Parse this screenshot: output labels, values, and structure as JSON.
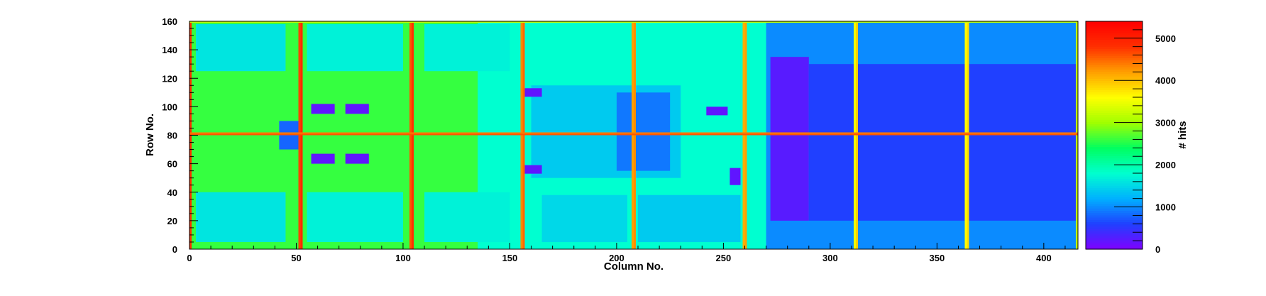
{
  "chart_data": {
    "type": "heatmap",
    "title": "",
    "xlabel": "Column No.",
    "ylabel": "Row No.",
    "zlabel": "# hits",
    "xlim": [
      0,
      416
    ],
    "ylim": [
      0,
      160
    ],
    "zlim": [
      0,
      5400
    ],
    "xticks": [
      "0",
      "50",
      "100",
      "150",
      "200",
      "250",
      "300",
      "350",
      "400"
    ],
    "yticks": [
      "0",
      "20",
      "40",
      "60",
      "80",
      "100",
      "120",
      "140",
      "160"
    ],
    "zticks": [
      "0",
      "1000",
      "2000",
      "3000",
      "4000",
      "5000"
    ],
    "colormap": [
      "#8000ff",
      "#2040ff",
      "#00b0ff",
      "#00ffd0",
      "#00ff60",
      "#a0ff00",
      "#ffff00",
      "#ffa000",
      "#ff3000",
      "#ff0000"
    ],
    "background_hits": 2500,
    "regions": [
      {
        "x": [
          0,
          416
        ],
        "y": [
          0,
          160
        ],
        "hits": 1900
      },
      {
        "x": [
          0,
          135
        ],
        "y": [
          0,
          160
        ],
        "hits": 2600
      },
      {
        "x": [
          135,
          270
        ],
        "y": [
          0,
          160
        ],
        "hits": 1800
      },
      {
        "x": [
          270,
          416
        ],
        "y": [
          0,
          160
        ],
        "hits": 1000
      },
      {
        "x": [
          160,
          230
        ],
        "y": [
          50,
          115
        ],
        "hits": 1400
      },
      {
        "x": [
          200,
          225
        ],
        "y": [
          55,
          110
        ],
        "hits": 900
      },
      {
        "x": [
          272,
          290
        ],
        "y": [
          20,
          135
        ],
        "hits": 250
      },
      {
        "x": [
          290,
          415
        ],
        "y": [
          20,
          130
        ],
        "hits": 600
      },
      {
        "x": [
          3,
          45
        ],
        "y": [
          125,
          158
        ],
        "hits": 1600
      },
      {
        "x": [
          55,
          100
        ],
        "y": [
          125,
          158
        ],
        "hits": 1700
      },
      {
        "x": [
          110,
          150
        ],
        "y": [
          125,
          158
        ],
        "hits": 1700
      },
      {
        "x": [
          3,
          45
        ],
        "y": [
          5,
          40
        ],
        "hits": 1600
      },
      {
        "x": [
          55,
          100
        ],
        "y": [
          5,
          40
        ],
        "hits": 1700
      },
      {
        "x": [
          110,
          150
        ],
        "y": [
          5,
          40
        ],
        "hits": 1700
      },
      {
        "x": [
          165,
          205
        ],
        "y": [
          5,
          38
        ],
        "hits": 1500
      },
      {
        "x": [
          210,
          258
        ],
        "y": [
          5,
          38
        ],
        "hits": 1400
      },
      {
        "x": [
          42,
          52
        ],
        "y": [
          70,
          90
        ],
        "hits": 800
      },
      {
        "x": [
          57,
          68
        ],
        "y": [
          95,
          102
        ],
        "hits": 200
      },
      {
        "x": [
          73,
          84
        ],
        "y": [
          95,
          102
        ],
        "hits": 200
      },
      {
        "x": [
          57,
          68
        ],
        "y": [
          60,
          67
        ],
        "hits": 200
      },
      {
        "x": [
          73,
          84
        ],
        "y": [
          60,
          67
        ],
        "hits": 200
      },
      {
        "x": [
          155,
          165
        ],
        "y": [
          107,
          113
        ],
        "hits": 200
      },
      {
        "x": [
          155,
          165
        ],
        "y": [
          53,
          59
        ],
        "hits": 200
      },
      {
        "x": [
          242,
          252
        ],
        "y": [
          94,
          100
        ],
        "hits": 200
      },
      {
        "x": [
          253,
          258
        ],
        "y": [
          45,
          57
        ],
        "hits": 200
      }
    ],
    "columns": [
      {
        "x": 0,
        "hits": 4800
      },
      {
        "x": 51,
        "hits": 4700
      },
      {
        "x": 52,
        "hits": 4900
      },
      {
        "x": 103,
        "hits": 4600
      },
      {
        "x": 104,
        "hits": 4800
      },
      {
        "x": 155,
        "hits": 4300
      },
      {
        "x": 156,
        "hits": 4500
      },
      {
        "x": 207,
        "hits": 4200
      },
      {
        "x": 208,
        "hits": 4300
      },
      {
        "x": 259,
        "hits": 4100
      },
      {
        "x": 260,
        "hits": 4200
      },
      {
        "x": 311,
        "hits": 3500
      },
      {
        "x": 312,
        "hits": 3900
      },
      {
        "x": 363,
        "hits": 3600
      },
      {
        "x": 364,
        "hits": 3800
      },
      {
        "x": 415,
        "hits": 3200
      }
    ],
    "rows": [
      {
        "y": 80,
        "hits": 4600
      },
      {
        "y": 81,
        "hits": 4400
      },
      {
        "y": 159,
        "hits": 3200
      }
    ]
  }
}
